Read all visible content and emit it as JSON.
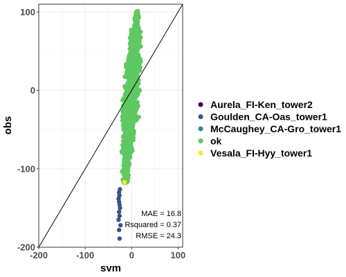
{
  "chart_data": {
    "type": "scatter",
    "title": "",
    "xlabel": "svm",
    "ylabel": "obs",
    "xlim": [
      -200,
      110
    ],
    "ylim": [
      -200,
      110
    ],
    "x_ticks": [
      -200,
      -100,
      0,
      100
    ],
    "y_ticks": [
      -200,
      -100,
      0,
      100
    ],
    "x_tick_labels": [
      "-200",
      "-100",
      "0",
      "100"
    ],
    "y_tick_labels": [
      "-200",
      "-100",
      "0",
      "100"
    ],
    "grid": true,
    "reference_line": "y = x",
    "legend_position": "right",
    "series": [
      {
        "name": "Aurela_FI-Ken_tower2",
        "color": "#440154",
        "points": []
      },
      {
        "name": "Goulden_CA-Oas_tower1",
        "color": "#3b528b",
        "points": [
          [
            -25,
            -126
          ],
          [
            -27,
            -130
          ],
          [
            -26,
            -134
          ],
          [
            -28,
            -138
          ],
          [
            -27,
            -142
          ],
          [
            -26,
            -146
          ],
          [
            -25,
            -150
          ],
          [
            -27,
            -155
          ],
          [
            -26,
            -160
          ],
          [
            -28,
            -165
          ],
          [
            -24,
            -172
          ],
          [
            -27,
            -178
          ],
          [
            -26,
            -189
          ]
        ]
      },
      {
        "name": "McCaughey_CA-Gro_tower1",
        "color": "#21908c",
        "points": []
      },
      {
        "name": "ok",
        "color": "#5ec962",
        "points": []
      },
      {
        "name": "Vesala_FI-Hyy_tower1",
        "color": "#fde725",
        "points": [
          [
            -15,
            -117
          ]
        ]
      }
    ],
    "annotations": [
      "MAE = 16.8",
      "Rsquared = 0.37",
      "RMSE = 24.3"
    ]
  }
}
